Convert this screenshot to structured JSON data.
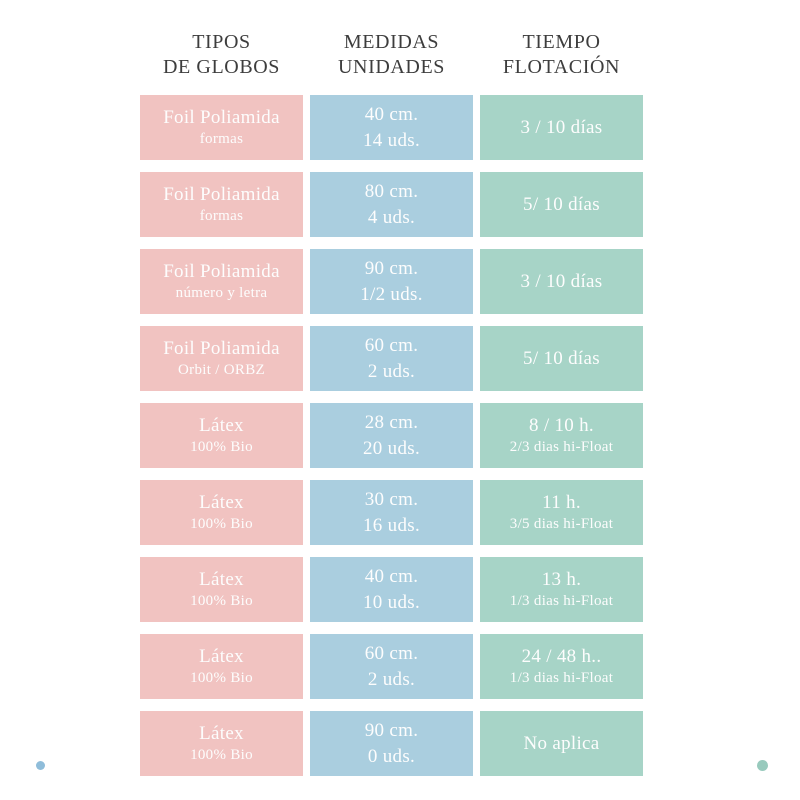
{
  "colors": {
    "pink": "#f1c3c1",
    "blue": "#aacedf",
    "green": "#a7d4c7",
    "cell_text": "#fdfdfd",
    "header_text": "#3d3d3d",
    "dot_blue": "#8fbdda",
    "dot_teal": "#98cabd"
  },
  "headers": [
    {
      "line1": "TIPOS",
      "line2": "DE GLOBOS"
    },
    {
      "line1": "MEDIDAS",
      "line2": "UNIDADES"
    },
    {
      "line1": "TIEMPO",
      "line2": "FLOTACIÓN"
    }
  ],
  "rows": [
    {
      "tipo": {
        "main": "Foil Poliamida",
        "sub": "formas"
      },
      "medidas": {
        "main": "40 cm.",
        "sub": "14 uds."
      },
      "tiempo": {
        "main": "3 / 10 días",
        "sub": ""
      }
    },
    {
      "tipo": {
        "main": "Foil Poliamida",
        "sub": "formas"
      },
      "medidas": {
        "main": "80 cm.",
        "sub": "4 uds."
      },
      "tiempo": {
        "main": "5/ 10 días",
        "sub": ""
      }
    },
    {
      "tipo": {
        "main": "Foil Poliamida",
        "sub": "número y letra"
      },
      "medidas": {
        "main": "90 cm.",
        "sub": "1/2 uds."
      },
      "tiempo": {
        "main": "3 / 10 días",
        "sub": ""
      }
    },
    {
      "tipo": {
        "main": "Foil Poliamida",
        "sub": "Orbit / ORBZ"
      },
      "medidas": {
        "main": "60 cm.",
        "sub": "2 uds."
      },
      "tiempo": {
        "main": "5/ 10 días",
        "sub": ""
      }
    },
    {
      "tipo": {
        "main": "Látex",
        "sub": "100% Bio"
      },
      "medidas": {
        "main": "28 cm.",
        "sub": "20 uds."
      },
      "tiempo": {
        "main": "8 / 10 h.",
        "sub": "2/3 dias hi-Float"
      }
    },
    {
      "tipo": {
        "main": "Látex",
        "sub": "100% Bio"
      },
      "medidas": {
        "main": "30 cm.",
        "sub": "16 uds."
      },
      "tiempo": {
        "main": "11 h.",
        "sub": "3/5 dias hi-Float"
      }
    },
    {
      "tipo": {
        "main": "Látex",
        "sub": "100% Bio"
      },
      "medidas": {
        "main": "40 cm.",
        "sub": "10 uds."
      },
      "tiempo": {
        "main": "13 h.",
        "sub": "1/3 dias hi-Float"
      }
    },
    {
      "tipo": {
        "main": "Látex",
        "sub": "100% Bio"
      },
      "medidas": {
        "main": "60 cm.",
        "sub": "2 uds."
      },
      "tiempo": {
        "main": "24 / 48 h..",
        "sub": "1/3 dias hi-Float"
      }
    },
    {
      "tipo": {
        "main": "Látex",
        "sub": "100% Bio"
      },
      "medidas": {
        "main": "90 cm.",
        "sub": "0 uds."
      },
      "tiempo": {
        "main": "No aplica",
        "sub": ""
      }
    }
  ],
  "chart_data": {
    "type": "table",
    "title": "",
    "columns": [
      "TIPOS DE GLOBOS",
      "MEDIDAS UNIDADES",
      "TIEMPO FLOTACIÓN"
    ],
    "rows": [
      [
        "Foil Poliamida formas",
        "40 cm. 14 uds.",
        "3 / 10 días"
      ],
      [
        "Foil Poliamida formas",
        "80 cm. 4 uds.",
        "5/ 10 días"
      ],
      [
        "Foil Poliamida número y letra",
        "90 cm. 1/2 uds.",
        "3 / 10 días"
      ],
      [
        "Foil Poliamida Orbit / ORBZ",
        "60 cm. 2 uds.",
        "5/ 10 días"
      ],
      [
        "Látex 100% Bio",
        "28 cm. 20 uds.",
        "8 / 10 h. 2/3 dias hi-Float"
      ],
      [
        "Látex 100% Bio",
        "30 cm. 16 uds.",
        "11 h. 3/5 dias hi-Float"
      ],
      [
        "Látex 100% Bio",
        "40 cm. 10 uds.",
        "13 h. 1/3 dias hi-Float"
      ],
      [
        "Látex 100% Bio",
        "60 cm. 2 uds.",
        "24 / 48 h.. 1/3 dias hi-Float"
      ],
      [
        "Látex 100% Bio",
        "90 cm. 0 uds.",
        "No aplica"
      ]
    ]
  }
}
